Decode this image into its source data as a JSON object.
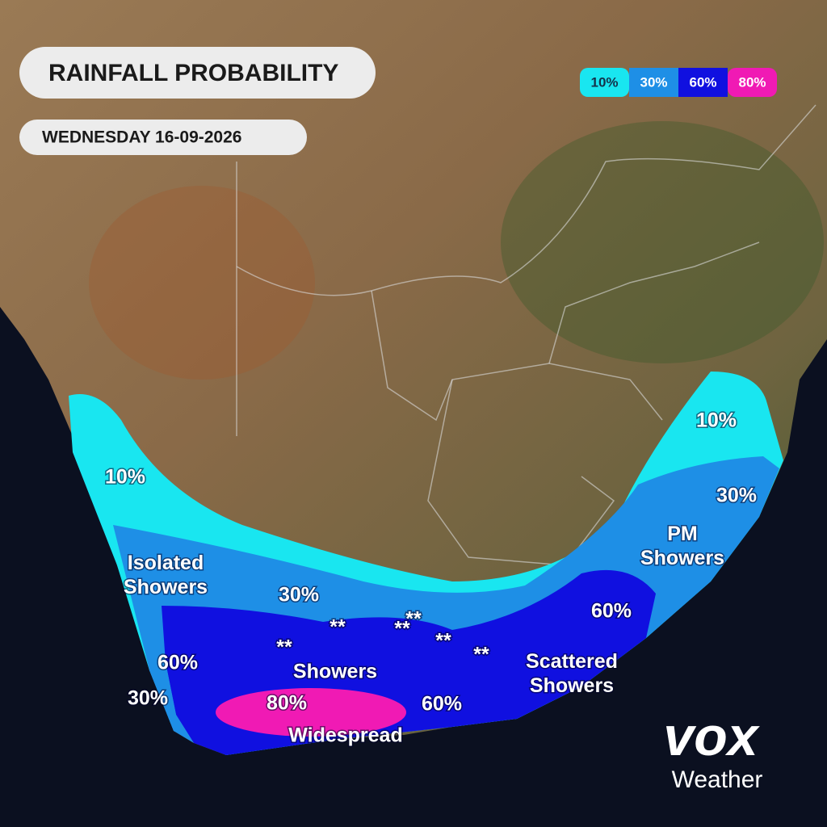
{
  "header": {
    "title": "RAINFALL PROBABILITY",
    "date": "WEDNESDAY 16-09-2026"
  },
  "legend": [
    {
      "label": "10%",
      "color": "#19e6f0"
    },
    {
      "label": "30%",
      "color": "#1e8fe6"
    },
    {
      "label": "60%",
      "color": "#1010e0"
    },
    {
      "label": "80%",
      "color": "#f01ab4"
    }
  ],
  "map_labels": [
    "10%",
    "10%",
    "30%",
    "Isolated Showers",
    "30%",
    "PM Showers",
    "60%",
    "**",
    "**",
    "**",
    "**",
    "**",
    "**",
    "60%",
    "Showers",
    "Scattered Showers",
    "30%",
    "80%",
    "Widespread",
    "60%"
  ],
  "logo": {
    "brand": "vox",
    "name": "Weather"
  }
}
